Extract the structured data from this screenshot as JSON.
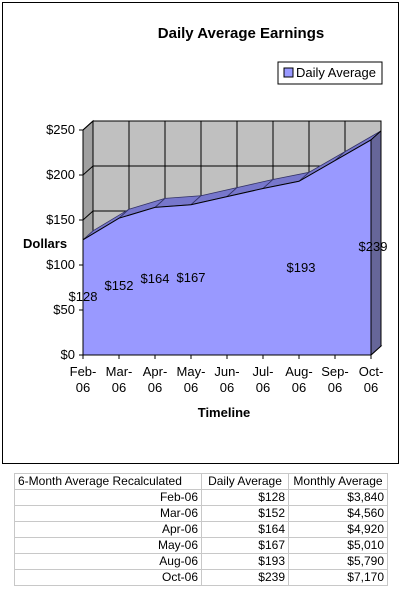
{
  "chart_data": {
    "type": "area",
    "title": "Daily Average Earnings",
    "xlabel": "Timeline",
    "ylabel": "Dollars",
    "categories": [
      [
        "Feb-",
        "06"
      ],
      [
        "Mar-",
        "06"
      ],
      [
        "Apr-",
        "06"
      ],
      [
        "May-",
        "06"
      ],
      [
        "Jun-",
        "06"
      ],
      [
        "Jul-",
        "06"
      ],
      [
        "Aug-",
        "06"
      ],
      [
        "Sep-",
        "06"
      ],
      [
        "Oct-",
        "06"
      ]
    ],
    "series": [
      {
        "name": "Daily Average",
        "values": [
          128,
          152,
          164,
          167,
          176,
          185,
          193,
          216,
          239
        ]
      }
    ],
    "data_labels": [
      {
        "index": 0,
        "text": "$128"
      },
      {
        "index": 1,
        "text": "$152"
      },
      {
        "index": 2,
        "text": "$164"
      },
      {
        "index": 3,
        "text": "$167"
      },
      {
        "index": 6,
        "text": "$193"
      },
      {
        "index": 8,
        "text": "$239"
      }
    ],
    "yticks": [
      "$0",
      "$50",
      "$100",
      "$150",
      "$200",
      "$250"
    ],
    "ylim": [
      0,
      250
    ],
    "grid": true,
    "legend": "top-right",
    "colors": {
      "fill": "#9999ff",
      "side": "#666699",
      "wall": "#c0c0c0",
      "grid": "#000000"
    }
  },
  "table": {
    "headers": [
      "6-Month Average Recalculated",
      "Daily Average",
      "Monthly Average"
    ],
    "rows": [
      [
        "Feb-06",
        "$128",
        "$3,840"
      ],
      [
        "Mar-06",
        "$152",
        "$4,560"
      ],
      [
        "Apr-06",
        "$164",
        "$4,920"
      ],
      [
        "May-06",
        "$167",
        "$5,010"
      ],
      [
        "Aug-06",
        "$193",
        "$5,790"
      ],
      [
        "Oct-06",
        "$239",
        "$7,170"
      ]
    ]
  }
}
